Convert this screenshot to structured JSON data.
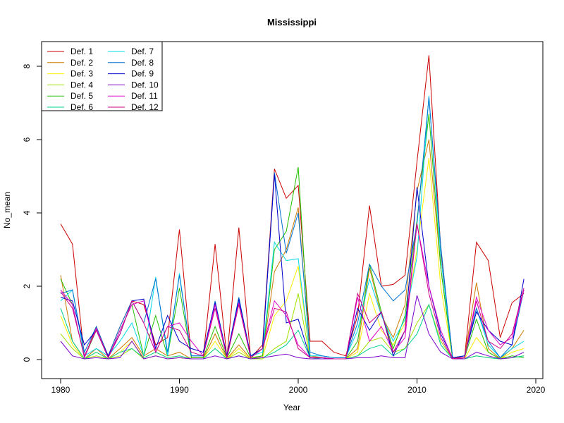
{
  "chart_data": {
    "type": "line",
    "title": "Mississippi",
    "xlabel": "Year",
    "ylabel": "No_mean",
    "xlim": [
      1980,
      2019
    ],
    "ylim": [
      0,
      8.4
    ],
    "x_ticks": [
      1980,
      1990,
      2000,
      2010,
      2020
    ],
    "y_ticks": [
      0,
      2,
      4,
      6,
      8
    ],
    "grid": false,
    "legend_position": "top-left",
    "x": [
      1980,
      1981,
      1982,
      1983,
      1984,
      1985,
      1986,
      1987,
      1988,
      1989,
      1990,
      1991,
      1992,
      1993,
      1994,
      1995,
      1996,
      1997,
      1998,
      1999,
      2000,
      2001,
      2002,
      2003,
      2004,
      2005,
      2006,
      2007,
      2008,
      2009,
      2010,
      2011,
      2012,
      2013,
      2014,
      2015,
      2016,
      2017,
      2018,
      2019
    ],
    "series": [
      {
        "name": "Def. 1",
        "color": "#CC0000",
        "values": [
          3.7,
          3.15,
          0.05,
          0.9,
          0.1,
          0.9,
          1.6,
          1.5,
          0.4,
          0.6,
          3.55,
          0.05,
          0.05,
          3.15,
          0.05,
          3.6,
          0.05,
          0.4,
          5.2,
          4.4,
          4.75,
          0.5,
          0.5,
          0.2,
          0.1,
          1.2,
          4.2,
          2.0,
          2.05,
          2.3,
          5.4,
          8.3,
          3.0,
          0.05,
          0.05,
          3.2,
          2.7,
          0.6,
          1.55,
          1.8
        ]
      },
      {
        "name": "Def. 2",
        "color": "#CC7A00",
        "values": [
          2.3,
          0.5,
          0.02,
          0.3,
          0.02,
          0.3,
          0.6,
          0.1,
          0.3,
          0.1,
          0.2,
          0.02,
          0.02,
          0.7,
          0.02,
          0.4,
          0.02,
          0.1,
          2.4,
          3.0,
          4.15,
          0.1,
          0.05,
          0.02,
          0.02,
          0.3,
          2.5,
          1.2,
          0.6,
          1.5,
          4.6,
          6.0,
          2.5,
          0.02,
          0.05,
          2.1,
          0.3,
          0.02,
          0.3,
          0.8
        ]
      },
      {
        "name": "Def. 3",
        "color": "#FFEE00",
        "values": [
          1.2,
          0.4,
          0.02,
          0.2,
          0.02,
          0.2,
          0.5,
          0.05,
          0.2,
          0.05,
          0.1,
          0.02,
          0.02,
          0.5,
          0.02,
          0.3,
          0.02,
          0.05,
          1.2,
          1.6,
          2.55,
          0.05,
          0.05,
          0.02,
          0.02,
          0.2,
          1.8,
          0.8,
          0.4,
          1.0,
          3.0,
          5.5,
          2.0,
          0.02,
          0.02,
          0.6,
          0.2,
          0.02,
          0.2,
          0.3
        ]
      },
      {
        "name": "Def. 4",
        "color": "#9FE000",
        "values": [
          0.7,
          0.3,
          0.02,
          0.1,
          0.02,
          0.1,
          0.3,
          0.02,
          0.1,
          0.02,
          0.05,
          0.02,
          0.02,
          0.3,
          0.02,
          0.2,
          0.02,
          0.02,
          0.3,
          0.5,
          1.8,
          0.02,
          0.02,
          0.02,
          0.02,
          0.1,
          0.5,
          0.6,
          0.2,
          0.3,
          1.0,
          1.5,
          0.5,
          0.02,
          0.02,
          0.1,
          0.05,
          0.02,
          0.05,
          0.1
        ]
      },
      {
        "name": "Def. 5",
        "color": "#22C000",
        "values": [
          2.2,
          1.5,
          0.05,
          0.8,
          0.05,
          0.8,
          1.5,
          0.1,
          1.2,
          0.1,
          1.95,
          0.05,
          0.05,
          0.9,
          0.05,
          0.7,
          0.05,
          0.1,
          3.0,
          3.5,
          5.25,
          0.05,
          0.05,
          0.02,
          0.02,
          0.5,
          2.6,
          1.3,
          0.3,
          1.2,
          3.8,
          6.7,
          2.5,
          0.02,
          0.05,
          1.1,
          0.2,
          0.02,
          0.1,
          0.05
        ]
      },
      {
        "name": "Def. 6",
        "color": "#00D090",
        "values": [
          1.4,
          0.5,
          0.02,
          0.2,
          0.02,
          0.2,
          0.3,
          0.05,
          0.2,
          0.05,
          0.1,
          0.02,
          0.02,
          0.3,
          0.02,
          0.1,
          0.02,
          0.05,
          0.2,
          0.4,
          0.8,
          0.05,
          0.02,
          0.02,
          0.02,
          0.1,
          0.3,
          0.4,
          0.1,
          0.3,
          0.7,
          1.5,
          0.4,
          0.02,
          0.02,
          0.1,
          0.05,
          0.02,
          0.05,
          0.1
        ]
      },
      {
        "name": "Def. 7",
        "color": "#00D8E8",
        "values": [
          1.6,
          1.9,
          0.1,
          0.3,
          0.1,
          0.5,
          1.0,
          0.1,
          2.25,
          0.1,
          2.35,
          0.1,
          0.1,
          1.5,
          0.1,
          1.6,
          0.1,
          0.2,
          3.2,
          2.7,
          2.75,
          0.1,
          0.1,
          0.05,
          0.05,
          0.8,
          2.2,
          1.2,
          0.5,
          1.1,
          2.8,
          7.2,
          2.8,
          0.05,
          0.1,
          1.4,
          0.4,
          0.05,
          0.3,
          0.5
        ]
      },
      {
        "name": "Def. 8",
        "color": "#0070D0",
        "values": [
          1.8,
          1.9,
          0.2,
          0.9,
          0.1,
          0.9,
          1.6,
          1.0,
          2.2,
          0.2,
          2.3,
          0.1,
          0.1,
          1.6,
          0.1,
          1.7,
          0.1,
          0.3,
          5.1,
          2.9,
          4.0,
          0.2,
          0.1,
          0.05,
          0.05,
          1.0,
          2.6,
          2.0,
          1.6,
          1.9,
          3.7,
          7.15,
          3.1,
          0.05,
          0.1,
          1.4,
          0.5,
          0.05,
          0.4,
          1.9
        ]
      },
      {
        "name": "Def. 9",
        "color": "#0000CC",
        "values": [
          1.7,
          1.6,
          0.4,
          0.8,
          0.1,
          0.7,
          1.6,
          1.65,
          0.3,
          1.2,
          0.5,
          0.3,
          0.2,
          1.55,
          0.1,
          1.65,
          0.1,
          0.3,
          5.05,
          1.0,
          1.1,
          0.05,
          0.05,
          0.02,
          0.02,
          1.4,
          0.8,
          1.3,
          0.1,
          0.8,
          4.7,
          2.0,
          0.7,
          0.05,
          0.1,
          1.3,
          0.8,
          0.5,
          0.4,
          2.2
        ]
      },
      {
        "name": "Def. 10",
        "color": "#7A00CC",
        "values": [
          0.5,
          0.1,
          0.02,
          0.05,
          0.02,
          0.05,
          0.5,
          0.02,
          0.1,
          0.02,
          0.05,
          0.02,
          0.02,
          0.1,
          0.02,
          0.1,
          0.02,
          0.05,
          0.1,
          0.15,
          0.05,
          0.02,
          0.02,
          0.02,
          0.02,
          0.05,
          0.05,
          0.1,
          0.05,
          0.05,
          1.75,
          0.7,
          0.2,
          0.02,
          0.02,
          0.2,
          0.1,
          0.02,
          0.05,
          0.2
        ]
      },
      {
        "name": "Def. 11",
        "color": "#E000CC",
        "values": [
          1.9,
          1.5,
          0.05,
          0.85,
          0.05,
          0.8,
          1.5,
          1.6,
          0.2,
          0.9,
          1.0,
          0.5,
          0.1,
          1.5,
          0.05,
          1.55,
          0.05,
          0.3,
          1.6,
          1.2,
          0.4,
          0.05,
          0.05,
          0.02,
          0.02,
          1.7,
          0.5,
          0.9,
          0.2,
          0.6,
          3.7,
          2.0,
          0.8,
          0.02,
          0.05,
          1.7,
          0.8,
          0.4,
          0.6,
          1.9
        ]
      },
      {
        "name": "Def. 12",
        "color": "#CC0088",
        "values": [
          1.85,
          1.4,
          0.1,
          0.8,
          0.05,
          0.7,
          1.6,
          1.0,
          0.2,
          0.9,
          0.8,
          0.2,
          0.1,
          1.4,
          0.05,
          1.5,
          0.05,
          0.3,
          1.4,
          1.3,
          0.3,
          0.05,
          0.05,
          0.02,
          0.02,
          1.8,
          1.0,
          1.3,
          0.2,
          0.8,
          3.7,
          1.8,
          0.6,
          0.02,
          0.05,
          1.6,
          0.5,
          0.3,
          0.7,
          1.95
        ]
      }
    ]
  }
}
